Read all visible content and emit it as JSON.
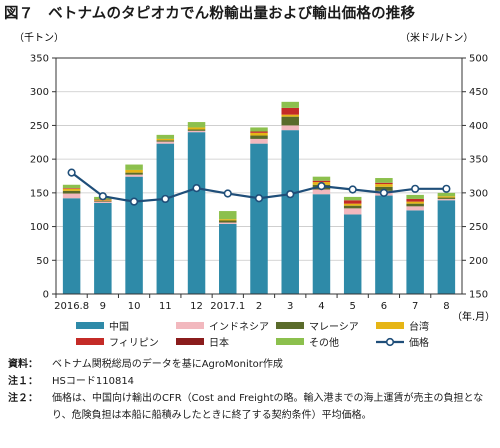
{
  "title": "図７　ベトナムのタピオカでん粉輸出量および輸出価格の推移",
  "chart_data": {
    "type": "bar",
    "stacked": true,
    "categories": [
      "2016.8",
      "9",
      "10",
      "11",
      "12",
      "2017.1",
      "2",
      "3",
      "4",
      "5",
      "6",
      "7",
      "8"
    ],
    "xlabel": "（年.月）",
    "ylabel_left": "（千トン）",
    "ylabel_right": "（米ドル/トン）",
    "ylim_left": [
      0,
      350
    ],
    "ylim_right": [
      150,
      500
    ],
    "yticks_left": [
      0,
      50,
      100,
      150,
      200,
      250,
      300,
      350
    ],
    "yticks_right": [
      150,
      200,
      250,
      300,
      350,
      400,
      450,
      500
    ],
    "grid": true,
    "series": [
      {
        "name": "中国",
        "color": "#2e8aa8",
        "axis": "left",
        "kind": "bar",
        "values": [
          142,
          135,
          174,
          223,
          240,
          104,
          223,
          243,
          148,
          118,
          146,
          124,
          139
        ]
      },
      {
        "name": "インドネシア",
        "color": "#f2b8be",
        "axis": "left",
        "kind": "bar",
        "values": [
          7,
          2,
          3,
          3,
          2,
          2,
          7,
          7,
          7,
          9,
          7,
          6,
          2
        ]
      },
      {
        "name": "マレーシア",
        "color": "#5a6b2a",
        "axis": "left",
        "kind": "bar",
        "values": [
          4,
          1,
          3,
          2,
          2,
          3,
          5,
          13,
          7,
          4,
          6,
          4,
          2
        ]
      },
      {
        "name": "台湾",
        "color": "#e6b515",
        "axis": "left",
        "kind": "bar",
        "values": [
          3,
          1,
          4,
          2,
          3,
          2,
          4,
          3,
          4,
          3,
          4,
          3,
          2
        ]
      },
      {
        "name": "フィリピン",
        "color": "#c42b27",
        "axis": "left",
        "kind": "bar",
        "values": [
          1,
          1,
          0,
          0,
          0,
          0,
          2,
          10,
          2,
          5,
          2,
          4,
          0
        ]
      },
      {
        "name": "日本",
        "color": "#8a1c1c",
        "axis": "left",
        "kind": "bar",
        "values": [
          0,
          0,
          0,
          0,
          0,
          0,
          0,
          0,
          0,
          0,
          0,
          0,
          0
        ]
      },
      {
        "name": "その他",
        "color": "#8cc04d",
        "axis": "left",
        "kind": "bar",
        "values": [
          5,
          4,
          8,
          6,
          8,
          12,
          6,
          9,
          6,
          5,
          7,
          6,
          5
        ]
      },
      {
        "name": "価格",
        "color": "#1f4e79",
        "axis": "right",
        "kind": "line",
        "values": [
          330,
          295,
          287,
          291,
          307,
          299,
          292,
          298,
          310,
          305,
          300,
          306,
          306
        ]
      }
    ],
    "legend_position": "bottom"
  },
  "notes": [
    {
      "label": "資料：",
      "text": "ベトナム関税総局のデータを基にAgroMonitor作成"
    },
    {
      "label": "注１：",
      "text": "HSコード110814"
    },
    {
      "label": "注２：",
      "text": "価格は、中国向け輸出のCFR（Cost and Freightの略。輸入港までの海上運賃が売主の負担となり、危険負担は本船に船積みしたときに終了する契約条件）平均価格。"
    }
  ]
}
